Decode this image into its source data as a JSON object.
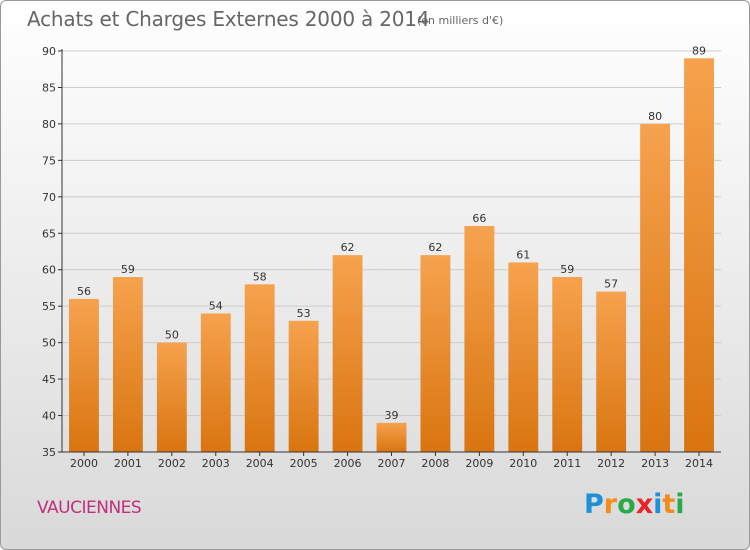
{
  "title": "Achats et Charges Externes 2000 à 2014",
  "unit": "(en milliers d'€)",
  "commune": "VAUCIENNES",
  "logo": {
    "letters": [
      "P",
      "r",
      "o",
      "x",
      "i",
      "t",
      "i"
    ],
    "colors": [
      "#1e90d6",
      "#f28c1a",
      "#2aa84a",
      "#e8232a",
      "#1e90d6",
      "#f28c1a",
      "#2aa84a"
    ]
  },
  "colors": {
    "bar_top": "#f6a24e",
    "bar_bottom": "#d97510",
    "grid": "#cccccc",
    "axis": "#333333",
    "commune_text": "#c0307a"
  },
  "chart_data": {
    "type": "bar",
    "categories": [
      "2000",
      "2001",
      "2002",
      "2003",
      "2004",
      "2005",
      "2006",
      "2007",
      "2008",
      "2009",
      "2010",
      "2011",
      "2012",
      "2013",
      "2014"
    ],
    "values": [
      56,
      59,
      50,
      54,
      58,
      53,
      62,
      39,
      62,
      66,
      61,
      59,
      57,
      80,
      89
    ],
    "title": "Achats et Charges Externes 2000 à 2014",
    "ylim": [
      35,
      90
    ],
    "yticks": [
      35,
      40,
      45,
      50,
      55,
      60,
      65,
      70,
      75,
      80,
      85,
      90
    ],
    "grid": true,
    "data_labels": true
  }
}
